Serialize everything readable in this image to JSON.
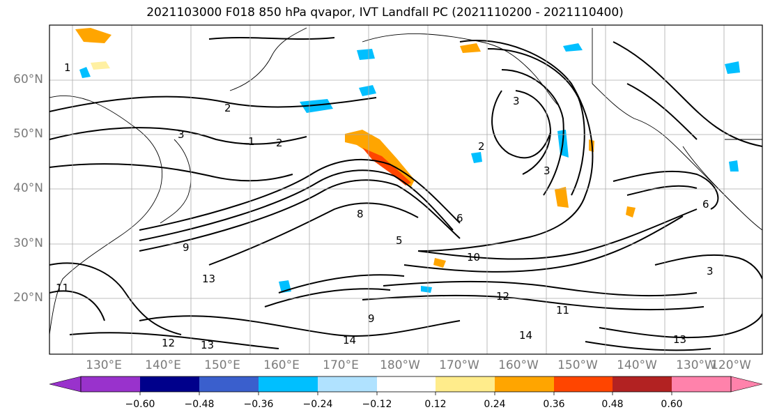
{
  "title": "2021103000 F018 850 hPa qvapor, IVT Landfall PC (2021110200 - 2021110400)",
  "lat_labels": [
    "60°N",
    "50°N",
    "40°N",
    "30°N",
    "20°N"
  ],
  "lon_labels": [
    "130°E",
    "140°E",
    "150°E",
    "160°E",
    "170°E",
    "180°W",
    "170°W",
    "160°W",
    "150°W",
    "140°W",
    "130°W",
    "120°W"
  ],
  "colorbar": {
    "tick_labels": [
      "−0.60",
      "−0.48",
      "−0.36",
      "−0.24",
      "−0.12",
      "0.12",
      "0.24",
      "0.36",
      "0.48",
      "0.60"
    ],
    "colors": [
      "#9932cc",
      "#00008b",
      "#3a5fcd",
      "#00bfff",
      "#b0e2ff",
      "#ffffff",
      "#ffec8b",
      "#ffa500",
      "#ff4500",
      "#b22222",
      "#ff82ab"
    ]
  },
  "contour_labels": [
    "1",
    "2",
    "3",
    "1",
    "2",
    "3",
    "5",
    "6",
    "9",
    "10",
    "13",
    "14",
    "11",
    "9",
    "12",
    "13",
    "14",
    "8",
    "6",
    "3",
    "2",
    "3",
    "13",
    "11",
    "12"
  ]
}
